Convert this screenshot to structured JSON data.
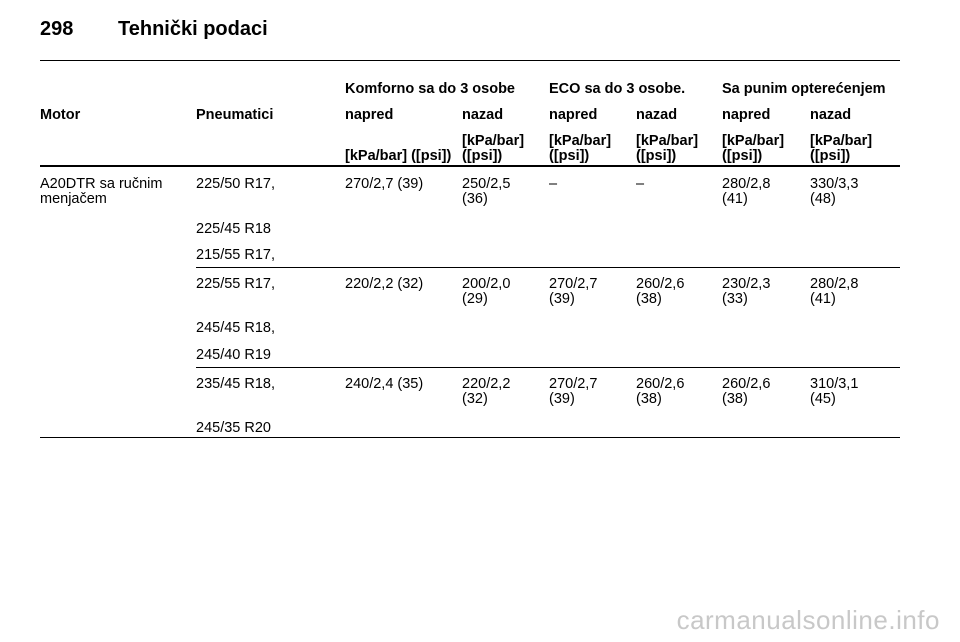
{
  "header": {
    "page_number": "298",
    "title": "Tehnički podaci"
  },
  "table": {
    "groups": [
      "Komforno sa do 3 osobe",
      "ECO sa do 3 osobe.",
      "Sa punim opterećenjem"
    ],
    "col_motor": "Motor",
    "col_tires": "Pneumatici",
    "sub_front": "napred",
    "sub_rear": "nazad",
    "unit_first": "[kPa/bar] ([psi])",
    "unit_line1": "[kPa/bar]",
    "unit_line2": "([psi])",
    "rows": [
      {
        "motor_line1": "A20DTR sa ručnim",
        "motor_line2": "menjačem",
        "tires": [
          "225/50 R17,",
          "225/45 R18",
          "215/55 R17,"
        ],
        "c1": "270/2,7 (39)",
        "c2a": "250/2,5",
        "c2b": "(36)",
        "c3": "–",
        "c4": "–",
        "c5a": "280/2,8",
        "c5b": "(41)",
        "c6a": "330/3,3",
        "c6b": "(48)"
      },
      {
        "tires": [
          "225/55 R17,",
          "245/45 R18,",
          "245/40 R19"
        ],
        "c1": "220/2,2 (32)",
        "c2a": "200/2,0",
        "c2b": "(29)",
        "c3a": "270/2,7",
        "c3b": "(39)",
        "c4a": "260/2,6",
        "c4b": "(38)",
        "c5a": "230/2,3",
        "c5b": "(33)",
        "c6a": "280/2,8",
        "c6b": "(41)"
      },
      {
        "tires": [
          "235/45 R18,",
          "245/35 R20"
        ],
        "c1": "240/2,4 (35)",
        "c2a": "220/2,2",
        "c2b": "(32)",
        "c3a": "270/2,7",
        "c3b": "(39)",
        "c4a": "260/2,6",
        "c4b": "(38)",
        "c5a": "260/2,6",
        "c5b": "(38)",
        "c6a": "310/3,1",
        "c6b": "(45)"
      }
    ]
  },
  "watermark": "carmanualsonline.info"
}
